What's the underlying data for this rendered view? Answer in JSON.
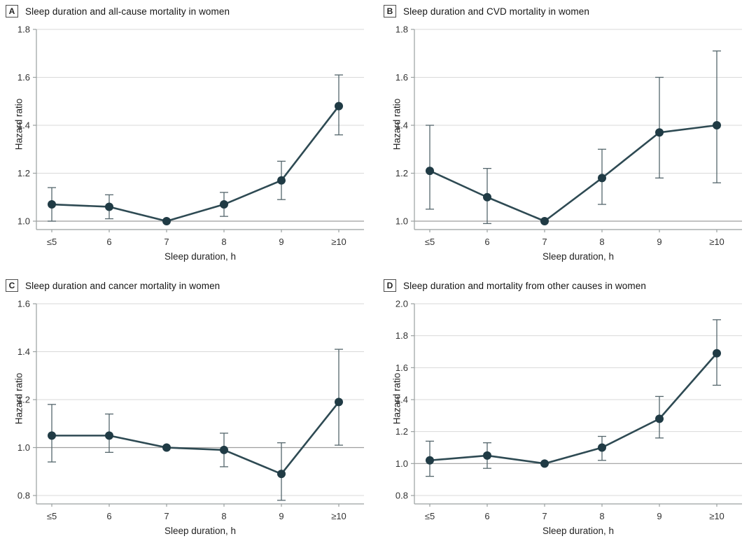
{
  "figure": {
    "ylabel_shared": "Hazard ratio",
    "xlabel_shared": "Sleep duration, h"
  },
  "colors": {
    "point": "#203b45",
    "line": "#2e4a53",
    "error_bar": "#55666c",
    "gridline": "#d9d9d9",
    "reference_line": "#9e9e9e",
    "spine": "#9aa0a0",
    "tick_text": "#333333",
    "background": "#ffffff"
  },
  "chart_data": [
    {
      "type": "line",
      "panel_label": "A",
      "title": "Sleep duration and all-cause mortality in women",
      "xlabel": "Sleep duration, h",
      "ylabel": "Hazard ratio",
      "categories": [
        "≤5",
        "6",
        "7",
        "8",
        "9",
        "≥10"
      ],
      "values": [
        1.07,
        1.06,
        1.0,
        1.07,
        1.17,
        1.48
      ],
      "ci_low": [
        1.0,
        1.01,
        1.0,
        1.02,
        1.09,
        1.36
      ],
      "ci_high": [
        1.14,
        1.11,
        1.0,
        1.12,
        1.25,
        1.61
      ],
      "yticks": [
        1.0,
        1.2,
        1.4,
        1.6,
        1.8
      ],
      "ylim": [
        1.0,
        1.8
      ],
      "reference_line": 1.0,
      "grid": true,
      "legend": null
    },
    {
      "type": "line",
      "panel_label": "B",
      "title": "Sleep duration and CVD mortality in women",
      "xlabel": "Sleep duration, h",
      "ylabel": "Hazard ratio",
      "categories": [
        "≤5",
        "6",
        "7",
        "8",
        "9",
        "≥10"
      ],
      "values": [
        1.21,
        1.1,
        1.0,
        1.18,
        1.37,
        1.4
      ],
      "ci_low": [
        1.05,
        0.99,
        1.0,
        1.07,
        1.18,
        1.16
      ],
      "ci_high": [
        1.4,
        1.22,
        1.0,
        1.3,
        1.6,
        1.71
      ],
      "yticks": [
        1.0,
        1.2,
        1.4,
        1.6,
        1.8
      ],
      "ylim": [
        1.0,
        1.8
      ],
      "reference_line": 1.0,
      "grid": true,
      "legend": null
    },
    {
      "type": "line",
      "panel_label": "C",
      "title": "Sleep duration and cancer mortality in women",
      "xlabel": "Sleep duration, h",
      "ylabel": "Hazard ratio",
      "categories": [
        "≤5",
        "6",
        "7",
        "8",
        "9",
        "≥10"
      ],
      "values": [
        1.05,
        1.05,
        1.0,
        0.99,
        0.89,
        1.19
      ],
      "ci_low": [
        0.94,
        0.98,
        1.0,
        0.92,
        0.78,
        1.01
      ],
      "ci_high": [
        1.18,
        1.14,
        1.0,
        1.06,
        1.02,
        1.41
      ],
      "yticks": [
        0.8,
        1.0,
        1.2,
        1.4,
        1.6
      ],
      "ylim": [
        0.8,
        1.6
      ],
      "reference_line": 1.0,
      "grid": true,
      "legend": null
    },
    {
      "type": "line",
      "panel_label": "D",
      "title": "Sleep duration and mortality from other causes in women",
      "xlabel": "Sleep duration, h",
      "ylabel": "Hazard ratio",
      "categories": [
        "≤5",
        "6",
        "7",
        "8",
        "9",
        "≥10"
      ],
      "values": [
        1.02,
        1.05,
        1.0,
        1.1,
        1.28,
        1.69
      ],
      "ci_low": [
        0.92,
        0.97,
        1.0,
        1.02,
        1.16,
        1.49
      ],
      "ci_high": [
        1.14,
        1.13,
        1.0,
        1.17,
        1.42,
        1.9
      ],
      "yticks": [
        0.8,
        1.0,
        1.2,
        1.4,
        1.6,
        1.8,
        2.0
      ],
      "ylim": [
        0.8,
        2.0
      ],
      "reference_line": 1.0,
      "grid": true,
      "legend": null
    }
  ]
}
